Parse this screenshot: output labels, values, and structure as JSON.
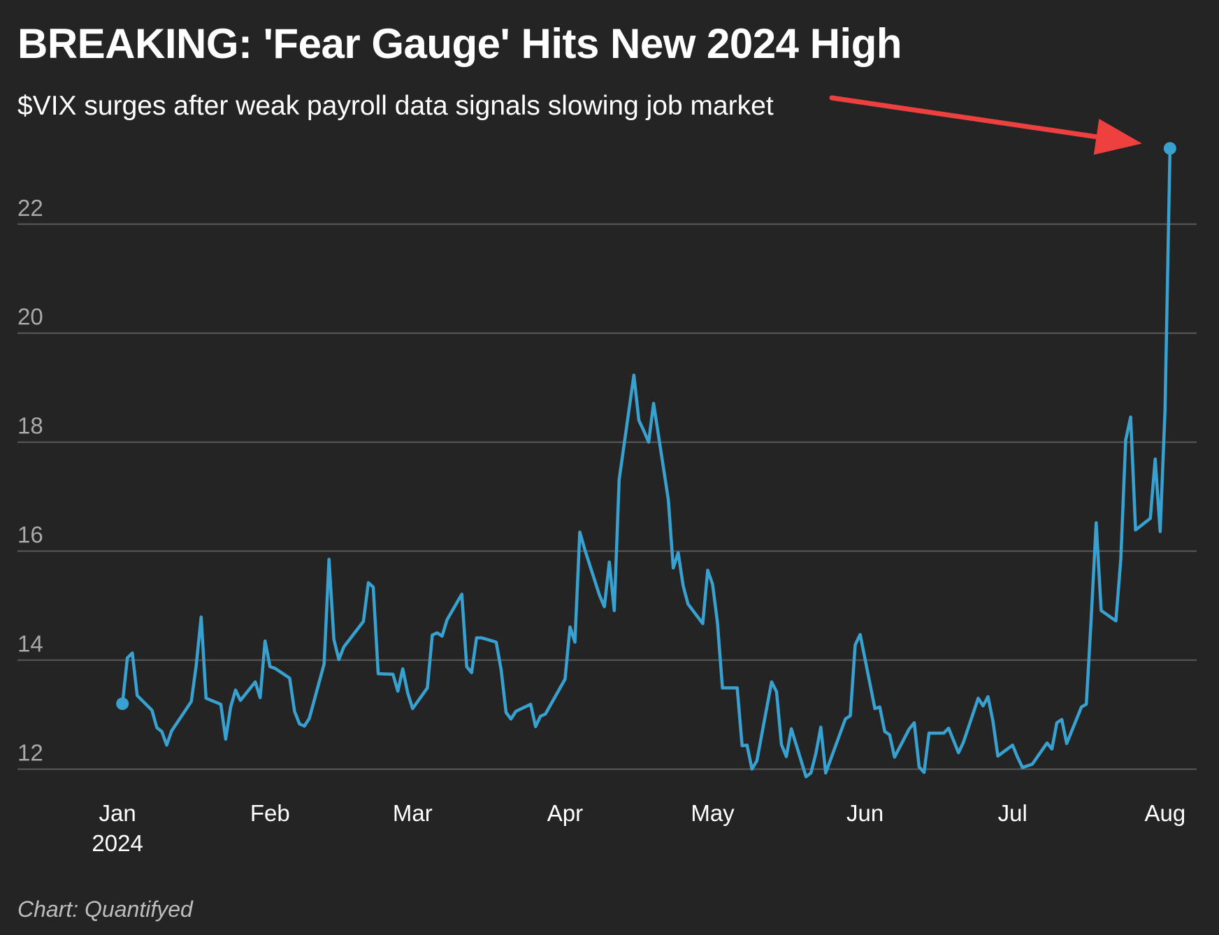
{
  "title": "BREAKING: 'Fear Gauge' Hits New 2024 High",
  "subtitle": "$VIX surges after weak payroll data signals slowing job market",
  "source": "Chart: Quantifyed",
  "colors": {
    "background": "#242424",
    "line": "#38a1d0",
    "arrow": "#ef4040",
    "grid": "#5a5a5a"
  },
  "chart_data": {
    "type": "line",
    "title": "BREAKING: 'Fear Gauge' Hits New 2024 High",
    "subtitle": "$VIX surges after weak payroll data signals slowing job market",
    "xlabel": "",
    "ylabel": "",
    "ylim": [
      11.7,
      23.6
    ],
    "yticks": [
      12,
      14,
      16,
      18,
      20,
      22
    ],
    "xlim": [
      "2023-12-28",
      "2024-08-06"
    ],
    "xticks": [
      {
        "date": "2024-01-01",
        "label": "Jan",
        "sublabel": "2024"
      },
      {
        "date": "2024-02-01",
        "label": "Feb",
        "sublabel": ""
      },
      {
        "date": "2024-03-01",
        "label": "Mar",
        "sublabel": ""
      },
      {
        "date": "2024-04-01",
        "label": "Apr",
        "sublabel": ""
      },
      {
        "date": "2024-05-01",
        "label": "May",
        "sublabel": ""
      },
      {
        "date": "2024-06-01",
        "label": "Jun",
        "sublabel": ""
      },
      {
        "date": "2024-07-01",
        "label": "Jul",
        "sublabel": ""
      },
      {
        "date": "2024-08-01",
        "label": "Aug",
        "sublabel": ""
      }
    ],
    "grid": true,
    "annotation": "arrow pointing to latest value",
    "series": [
      {
        "x": [
          "2024-01-02",
          "2024-01-03",
          "2024-01-04",
          "2024-01-05",
          "2024-01-08",
          "2024-01-09",
          "2024-01-10",
          "2024-01-11",
          "2024-01-12",
          "2024-01-16",
          "2024-01-17",
          "2024-01-18",
          "2024-01-19",
          "2024-01-22",
          "2024-01-23",
          "2024-01-24",
          "2024-01-25",
          "2024-01-26",
          "2024-01-29",
          "2024-01-30",
          "2024-01-31",
          "2024-02-01",
          "2024-02-02",
          "2024-02-05",
          "2024-02-06",
          "2024-02-07",
          "2024-02-08",
          "2024-02-09",
          "2024-02-12",
          "2024-02-13",
          "2024-02-14",
          "2024-02-15",
          "2024-02-16",
          "2024-02-20",
          "2024-02-21",
          "2024-02-22",
          "2024-02-23",
          "2024-02-26",
          "2024-02-27",
          "2024-02-28",
          "2024-02-29",
          "2024-03-01",
          "2024-03-04",
          "2024-03-05",
          "2024-03-06",
          "2024-03-07",
          "2024-03-08",
          "2024-03-11",
          "2024-03-12",
          "2024-03-13",
          "2024-03-14",
          "2024-03-15",
          "2024-03-18",
          "2024-03-19",
          "2024-03-20",
          "2024-03-21",
          "2024-03-22",
          "2024-03-25",
          "2024-03-26",
          "2024-03-27",
          "2024-03-28",
          "2024-04-01",
          "2024-04-02",
          "2024-04-03",
          "2024-04-04",
          "2024-04-05",
          "2024-04-08",
          "2024-04-09",
          "2024-04-10",
          "2024-04-11",
          "2024-04-12",
          "2024-04-15",
          "2024-04-16",
          "2024-04-17",
          "2024-04-18",
          "2024-04-19",
          "2024-04-22",
          "2024-04-23",
          "2024-04-24",
          "2024-04-25",
          "2024-04-26",
          "2024-04-29",
          "2024-04-30",
          "2024-05-01",
          "2024-05-02",
          "2024-05-03",
          "2024-05-06",
          "2024-05-07",
          "2024-05-08",
          "2024-05-09",
          "2024-05-10",
          "2024-05-13",
          "2024-05-14",
          "2024-05-15",
          "2024-05-16",
          "2024-05-17",
          "2024-05-20",
          "2024-05-21",
          "2024-05-22",
          "2024-05-23",
          "2024-05-24",
          "2024-05-28",
          "2024-05-29",
          "2024-05-30",
          "2024-05-31",
          "2024-06-03",
          "2024-06-04",
          "2024-06-05",
          "2024-06-06",
          "2024-06-07",
          "2024-06-10",
          "2024-06-11",
          "2024-06-12",
          "2024-06-13",
          "2024-06-14",
          "2024-06-17",
          "2024-06-18",
          "2024-06-20",
          "2024-06-21",
          "2024-06-24",
          "2024-06-25",
          "2024-06-26",
          "2024-06-27",
          "2024-06-28",
          "2024-07-01",
          "2024-07-02",
          "2024-07-03",
          "2024-07-05",
          "2024-07-08",
          "2024-07-09",
          "2024-07-10",
          "2024-07-11",
          "2024-07-12",
          "2024-07-15",
          "2024-07-16",
          "2024-07-17",
          "2024-07-18",
          "2024-07-19",
          "2024-07-22",
          "2024-07-23",
          "2024-07-24",
          "2024-07-25",
          "2024-07-26",
          "2024-07-29",
          "2024-07-30",
          "2024-07-31",
          "2024-08-01",
          "2024-08-02"
        ],
        "y": [
          13.2,
          14.04,
          14.13,
          13.35,
          13.08,
          12.76,
          12.69,
          12.44,
          12.7,
          13.24,
          13.9,
          14.79,
          13.3,
          13.19,
          12.55,
          13.14,
          13.45,
          13.26,
          13.6,
          13.31,
          14.35,
          13.88,
          13.85,
          13.67,
          13.06,
          12.83,
          12.79,
          12.93,
          13.93,
          15.85,
          14.38,
          14.01,
          14.24,
          14.71,
          15.42,
          15.34,
          13.75,
          13.74,
          13.43,
          13.84,
          13.4,
          13.11,
          13.49,
          14.46,
          14.5,
          14.44,
          14.74,
          15.21,
          13.88,
          13.77,
          14.41,
          14.41,
          14.33,
          13.82,
          13.04,
          12.92,
          13.06,
          13.19,
          12.78,
          12.97,
          13.01,
          13.65,
          14.61,
          14.33,
          16.35,
          16.03,
          15.19,
          14.98,
          15.8,
          14.91,
          17.31,
          19.23,
          18.4,
          18.21,
          18.0,
          18.71,
          16.94,
          15.69,
          15.97,
          15.37,
          15.03,
          14.67,
          15.65,
          15.39,
          14.68,
          13.49,
          13.49,
          12.43,
          12.44,
          12.0,
          12.15,
          13.6,
          13.42,
          12.45,
          12.23,
          12.74,
          11.86,
          11.93,
          12.29,
          12.77,
          11.93,
          12.92,
          12.98,
          14.28,
          14.47,
          13.11,
          13.14,
          12.69,
          12.63,
          12.22,
          12.74,
          12.85,
          12.04,
          11.94,
          12.66,
          12.66,
          12.75,
          12.3,
          12.49,
          13.3,
          13.16,
          13.33,
          12.88,
          12.24,
          12.44,
          12.22,
          12.03,
          12.09,
          12.48,
          12.37,
          12.85,
          12.91,
          12.47,
          13.14,
          13.19,
          14.8,
          16.52,
          14.91,
          14.72,
          15.85,
          18.04,
          18.46,
          16.39,
          16.6,
          17.69,
          16.36,
          18.59,
          23.39
        ]
      }
    ]
  }
}
